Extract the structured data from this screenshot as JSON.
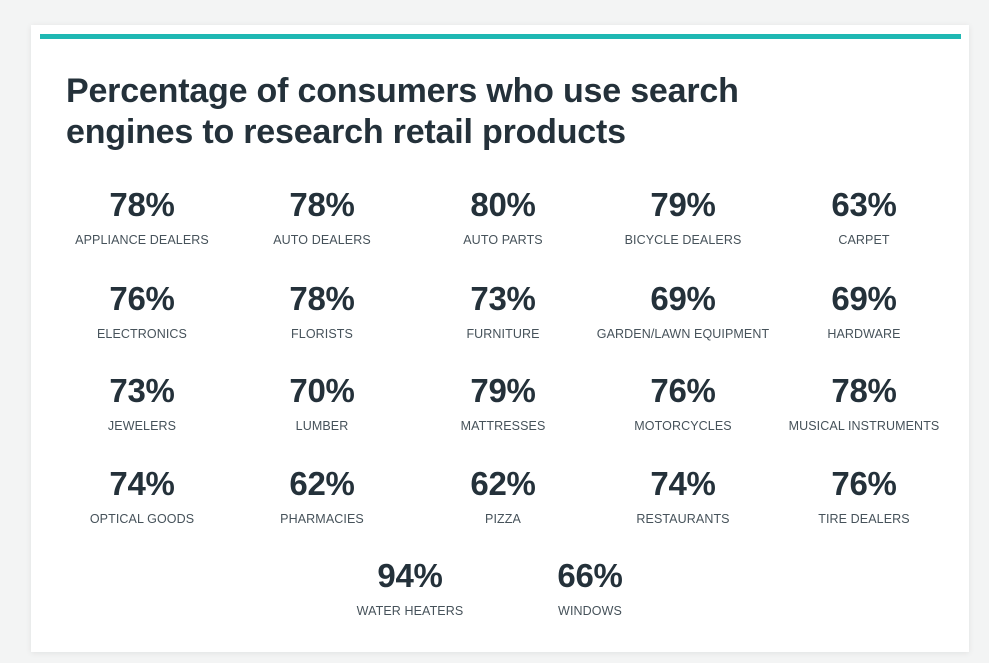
{
  "colors": {
    "accent": "#1fb8b3",
    "text_dark": "#24313a",
    "text_label": "#46525a"
  },
  "chart_data": {
    "type": "table",
    "title": "Percentage of consumers who use search engines to research retail products",
    "unit": "%",
    "categories": [
      "APPLIANCE DEALERS",
      "AUTO DEALERS",
      "AUTO PARTS",
      "BICYCLE DEALERS",
      "CARPET",
      "ELECTRONICS",
      "FLORISTS",
      "FURNITURE",
      "GARDEN/LAWN EQUIPMENT",
      "HARDWARE",
      "JEWELERS",
      "LUMBER",
      "MATTRESSES",
      "MOTORCYCLES",
      "MUSICAL INSTRUMENTS",
      "OPTICAL GOODS",
      "PHARMACIES",
      "PIZZA",
      "RESTAURANTS",
      "TIRE DEALERS",
      "WATER HEATERS",
      "WINDOWS"
    ],
    "values": [
      78,
      78,
      80,
      79,
      63,
      76,
      78,
      73,
      69,
      69,
      73,
      70,
      79,
      76,
      78,
      74,
      62,
      62,
      74,
      76,
      94,
      66
    ],
    "value_labels": [
      "78%",
      "78%",
      "80%",
      "79%",
      "63%",
      "76%",
      "78%",
      "73%",
      "69%",
      "69%",
      "73%",
      "70%",
      "79%",
      "76%",
      "78%",
      "74%",
      "62%",
      "62%",
      "74%",
      "76%",
      "94%",
      "66%"
    ]
  }
}
